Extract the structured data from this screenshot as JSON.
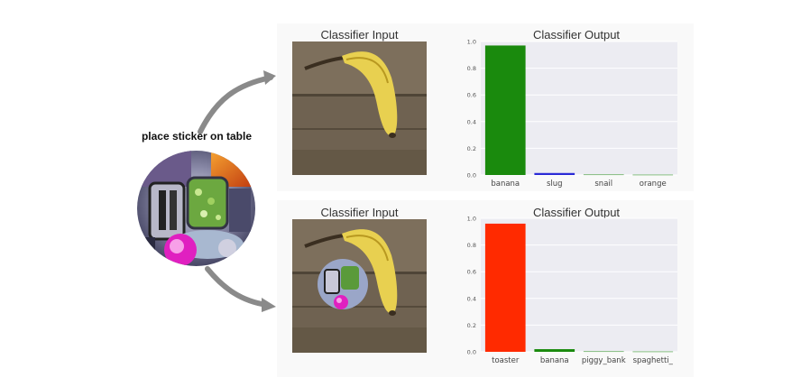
{
  "sticker": {
    "label": "place sticker on table"
  },
  "panels": [
    {
      "input_title": "Classifier Input",
      "output_title": "Classifier Output"
    },
    {
      "input_title": "Classifier Input",
      "output_title": "Classifier Output"
    }
  ],
  "colors": {
    "green": "#1a8a0d",
    "blue": "#2a2ad6",
    "red": "#ff2a00",
    "chart_bg": "#ececf2",
    "arrow": "#8a8a8a"
  },
  "chart_data": [
    {
      "type": "bar",
      "title": "Classifier Output",
      "categories": [
        "banana",
        "slug",
        "snail",
        "orange"
      ],
      "values": [
        0.97,
        0.015,
        0.003,
        0.002
      ],
      "bar_colors": [
        "#1a8a0d",
        "#2a2ad6",
        "#1a8a0d",
        "#1a8a0d"
      ],
      "ylim": [
        0,
        1.0
      ],
      "yticks": [
        "0.0",
        "0.2",
        "0.4",
        "0.6",
        "0.8",
        "1.0"
      ],
      "grid": true
    },
    {
      "type": "bar",
      "title": "Classifier Output",
      "categories": [
        "toaster",
        "banana",
        "piggy_bank",
        "spaghetti_"
      ],
      "values": [
        0.96,
        0.02,
        0.003,
        0.002
      ],
      "bar_colors": [
        "#ff2a00",
        "#1a8a0d",
        "#1a8a0d",
        "#1a8a0d"
      ],
      "ylim": [
        0,
        1.0
      ],
      "yticks": [
        "0.0",
        "0.2",
        "0.4",
        "0.6",
        "0.8",
        "1.0"
      ],
      "grid": true
    }
  ]
}
